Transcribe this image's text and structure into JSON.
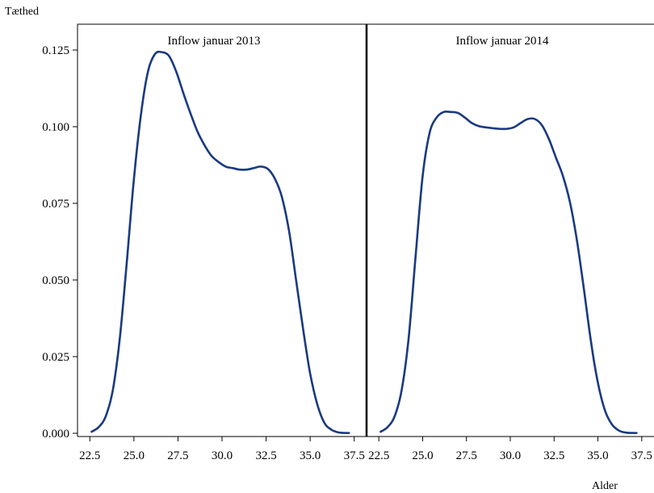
{
  "chart_data": {
    "type": "line",
    "ylabel": "Tæthed",
    "xlabel": "Alder",
    "ylim": [
      0,
      0.125
    ],
    "xlim": [
      21.8,
      38.2
    ],
    "y_ticks": [
      0,
      0.025,
      0.05,
      0.075,
      0.1,
      0.125
    ],
    "y_tick_labels": [
      "0.000",
      "0.025",
      "0.050",
      "0.075",
      "0.100",
      "0.125"
    ],
    "x_ticks": [
      22.5,
      25.0,
      27.5,
      30.0,
      32.5,
      35.0,
      37.5
    ],
    "x_tick_labels": [
      "22.5",
      "25.0",
      "27.5",
      "30.0",
      "32.5",
      "35.0",
      "37.5"
    ],
    "grid": false,
    "line_color": "#1a3a80",
    "panels": [
      {
        "title": "Inflow januar 2013",
        "series": [
          {
            "x": [
              22.6,
              23.0,
              23.4,
              23.8,
              24.2,
              24.6,
              25.0,
              25.4,
              25.8,
              26.2,
              26.6,
              27.0,
              27.4,
              27.8,
              28.2,
              28.6,
              29.0,
              29.4,
              29.8,
              30.2,
              30.6,
              31.0,
              31.4,
              31.8,
              32.2,
              32.6,
              33.0,
              33.4,
              33.8,
              34.2,
              34.6,
              35.0,
              35.4,
              35.8,
              36.2,
              36.6,
              37.0,
              37.2
            ],
            "y": [
              0.0005,
              0.002,
              0.0055,
              0.014,
              0.031,
              0.056,
              0.083,
              0.104,
              0.118,
              0.1237,
              0.1243,
              0.123,
              0.118,
              0.111,
              0.1045,
              0.0985,
              0.094,
              0.0905,
              0.0885,
              0.087,
              0.0865,
              0.086,
              0.086,
              0.0865,
              0.087,
              0.0862,
              0.083,
              0.077,
              0.066,
              0.05,
              0.034,
              0.0195,
              0.0095,
              0.0035,
              0.0012,
              0.0003,
              0.0001,
              0.0001
            ]
          }
        ]
      },
      {
        "title": "Inflow januar 2014",
        "series": [
          {
            "x": [
              22.6,
              23.0,
              23.4,
              23.8,
              24.2,
              24.6,
              25.0,
              25.4,
              25.8,
              26.2,
              26.6,
              27.0,
              27.4,
              27.8,
              28.2,
              28.6,
              29.0,
              29.4,
              29.8,
              30.2,
              30.6,
              31.0,
              31.4,
              31.8,
              32.2,
              32.6,
              33.0,
              33.4,
              33.8,
              34.2,
              34.6,
              35.0,
              35.4,
              35.8,
              36.2,
              36.6,
              37.0,
              37.2
            ],
            "y": [
              0.0005,
              0.002,
              0.0055,
              0.014,
              0.031,
              0.058,
              0.084,
              0.098,
              0.103,
              0.1048,
              0.1048,
              0.1045,
              0.103,
              0.1012,
              0.1002,
              0.0998,
              0.0995,
              0.0993,
              0.0993,
              0.0998,
              0.1012,
              0.1025,
              0.1025,
              0.1005,
              0.096,
              0.09,
              0.084,
              0.0755,
              0.063,
              0.047,
              0.03,
              0.0165,
              0.0075,
              0.0029,
              0.0009,
              0.0002,
              0.0001,
              0.0001
            ]
          }
        ]
      }
    ]
  }
}
